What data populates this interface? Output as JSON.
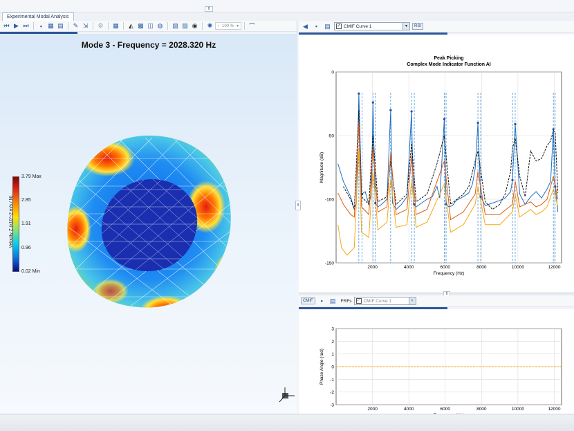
{
  "app": {
    "tab_label": "Experimental Modal Analysis",
    "collapse_glyph": "⇕"
  },
  "left_toolbar": {
    "zoom_value": "100 %",
    "zoom_down": "‹",
    "zoom_drop": "▾"
  },
  "viewer": {
    "mode_title": "Mode 3 - Frequency = 2028.320 Hz",
    "legend": {
      "max_label": "3.79 Max",
      "ticks": [
        "2.85",
        "1.91",
        "0.96"
      ],
      "min_label": "0.02 Min",
      "axis_label": "Velocity Z (x10^-2 m/s / N)"
    }
  },
  "right_top": {
    "curve_select": "CMIF Curve 1",
    "tag_button": "RSI",
    "chart_data": {
      "type": "line",
      "title": "Peak Picking",
      "subtitle": "Complex Mode Indicator Function AI",
      "xlabel": "Frequency (Hz)",
      "ylabel": "Magnitude (dB)",
      "xlim": [
        0,
        12400
      ],
      "ylim": [
        -150,
        0
      ],
      "xticks": [
        2000,
        4000,
        6000,
        8000,
        10000,
        12000
      ],
      "yticks": [
        0,
        -50,
        -100,
        -150
      ],
      "grid": true,
      "series": [
        {
          "color": "#1f6fc2",
          "x": [
            100,
            400,
            800,
            1000,
            1120,
            1250,
            1400,
            1600,
            1800,
            1950,
            2028,
            2150,
            2300,
            2500,
            2800,
            3000,
            3100,
            3300,
            3600,
            3900,
            4150,
            4250,
            4400,
            4700,
            5000,
            5300,
            5550,
            5700,
            5950,
            6050,
            6200,
            6400,
            6600,
            7000,
            7300,
            7500,
            7650,
            7800,
            7950,
            8200,
            8600,
            9000,
            9300,
            9600,
            9700,
            9850,
            10100,
            10400,
            10700,
            11000,
            11300,
            11600,
            11800,
            11950,
            12050,
            12200
          ],
          "y": [
            -72,
            -86,
            -98,
            -108,
            -103,
            -17,
            -96,
            -94,
            -104,
            -95,
            -24,
            -103,
            -106,
            -104,
            -100,
            -30,
            -103,
            -108,
            -104,
            -98,
            -31,
            -104,
            -106,
            -103,
            -100,
            -98,
            -90,
            -99,
            -37,
            -104,
            -106,
            -105,
            -101,
            -98,
            -95,
            -88,
            -76,
            -40,
            -98,
            -105,
            -103,
            -101,
            -99,
            -94,
            -85,
            -41,
            -96,
            -104,
            -98,
            -94,
            -99,
            -92,
            -86,
            -45,
            -90,
            -110
          ]
        },
        {
          "color": "#111111",
          "dashed": true,
          "x": [
            400,
            800,
            1000,
            1250,
            1400,
            1800,
            2028,
            2300,
            2800,
            3000,
            3300,
            3900,
            4150,
            4400,
            5000,
            5550,
            5950,
            6300,
            7000,
            7300,
            7650,
            7800,
            8200,
            8600,
            9000,
            9300,
            9600,
            9700,
            9850,
            10100,
            10400,
            10700,
            11000,
            11300,
            11600,
            11800,
            11950,
            12050,
            12200
          ],
          "y": [
            -90,
            -100,
            -108,
            -30,
            -98,
            -104,
            -50,
            -102,
            -98,
            -70,
            -104,
            -96,
            -56,
            -102,
            -96,
            -72,
            -50,
            -104,
            -96,
            -90,
            -70,
            -62,
            -102,
            -108,
            -104,
            -96,
            -78,
            -60,
            -52,
            -82,
            -98,
            -62,
            -70,
            -68,
            -58,
            -54,
            -46,
            -48,
            -95
          ]
        },
        {
          "color": "#e05a10",
          "x": [
            100,
            400,
            800,
            1000,
            1250,
            1400,
            1800,
            2028,
            2300,
            2800,
            3000,
            3300,
            3900,
            4150,
            4400,
            5000,
            5950,
            6300,
            7000,
            7650,
            7800,
            8200,
            9000,
            9700,
            9850,
            10100,
            10700,
            11000,
            11300,
            11600,
            11950,
            12200
          ],
          "y": [
            -95,
            -104,
            -112,
            -114,
            -40,
            -106,
            -112,
            -60,
            -110,
            -106,
            -64,
            -112,
            -108,
            -66,
            -112,
            -108,
            -70,
            -116,
            -110,
            -96,
            -78,
            -112,
            -112,
            -104,
            -86,
            -106,
            -102,
            -106,
            -104,
            -100,
            -82,
            -100
          ]
        },
        {
          "color": "#f4a815",
          "x": [
            100,
            300,
            600,
            1000,
            1250,
            1400,
            1800,
            2028,
            2300,
            2800,
            3000,
            3300,
            3900,
            4150,
            4400,
            5000,
            5950,
            6300,
            7000,
            7650,
            7800,
            8200,
            9000,
            9700,
            9850,
            10100,
            10700,
            11000,
            11300,
            11600,
            11950,
            12200
          ],
          "y": [
            -120,
            -138,
            -144,
            -138,
            -60,
            -126,
            -130,
            -78,
            -124,
            -118,
            -84,
            -122,
            -120,
            -86,
            -122,
            -118,
            -88,
            -126,
            -120,
            -104,
            -90,
            -120,
            -120,
            -110,
            -96,
            -114,
            -108,
            -112,
            -110,
            -106,
            -92,
            -106
          ]
        }
      ],
      "peaks_hz": [
        1250,
        1430,
        2028,
        2160,
        3000,
        4150,
        4300,
        5950,
        6050,
        7800,
        7950,
        9700,
        9850,
        11950,
        12050
      ]
    }
  },
  "right_bottom": {
    "frf_label": "FRFs",
    "curve_select": "CMIF Curve 1",
    "tag_button": "CMIF",
    "chart_data": {
      "type": "line",
      "title": "",
      "xlabel": "Frequency (Hz)",
      "ylabel": "Phase Angle (rad)",
      "xlim": [
        0,
        12400
      ],
      "ylim": [
        -3,
        3
      ],
      "xticks": [
        2000,
        4000,
        6000,
        8000,
        10000,
        12000
      ],
      "yticks": [
        3,
        2,
        1,
        0,
        -1,
        -2,
        -3
      ],
      "grid": true,
      "series": [
        {
          "color": "#f4a815",
          "dashed": true,
          "x": [
            0,
            12400
          ],
          "y": [
            0,
            0
          ]
        }
      ]
    }
  }
}
